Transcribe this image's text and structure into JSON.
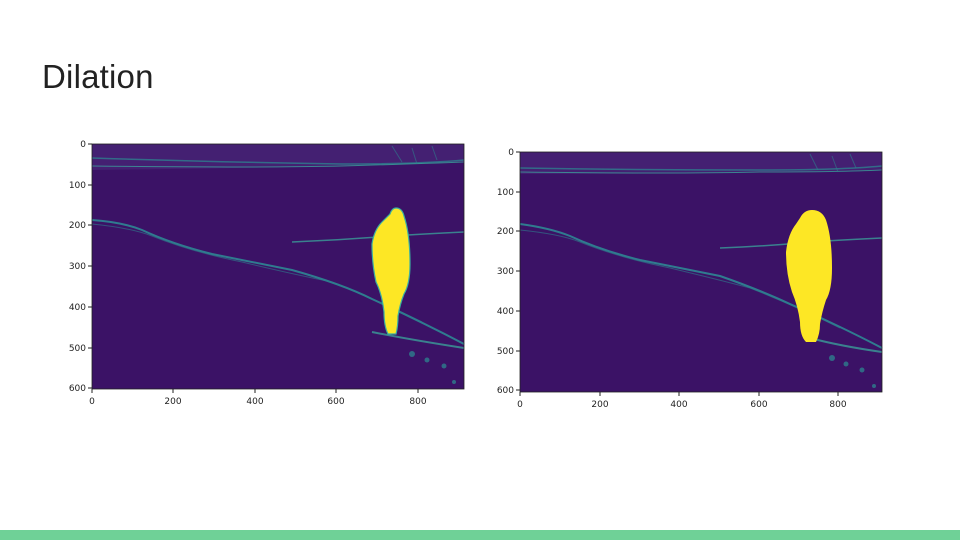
{
  "slide": {
    "title": "Dilation",
    "bar_color": "#6fd197"
  },
  "colors": {
    "background": "#3b1266",
    "sky": "#441a6e",
    "noise": "#2e7e8d",
    "edge": "#3ab0a0",
    "highlight": "#fde725"
  },
  "plots": [
    {
      "name": "left-plot",
      "xticks": [
        "0",
        "200",
        "400",
        "600",
        "800"
      ],
      "yticks": [
        "0",
        "100",
        "200",
        "300",
        "400",
        "500",
        "600"
      ]
    },
    {
      "name": "right-plot",
      "xticks": [
        "0",
        "200",
        "400",
        "600",
        "800"
      ],
      "yticks": [
        "0",
        "100",
        "200",
        "300",
        "400",
        "500",
        "600"
      ]
    }
  ]
}
